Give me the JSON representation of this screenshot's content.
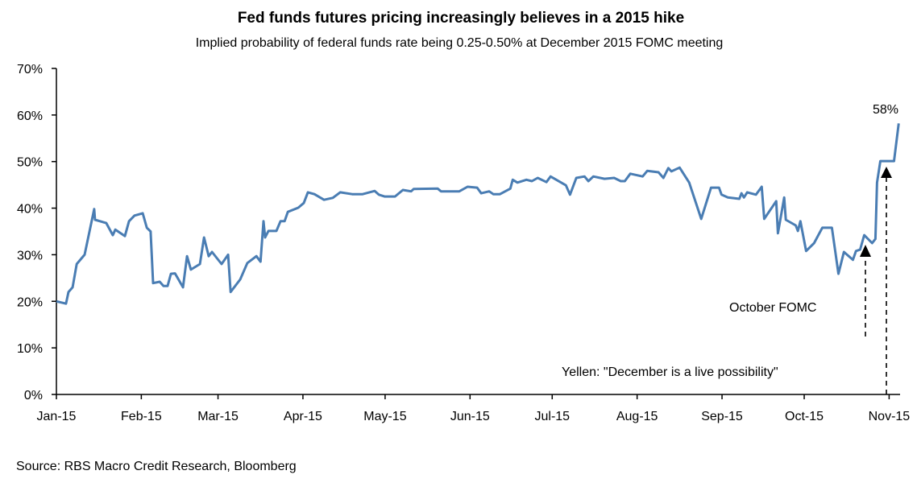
{
  "chart_data": {
    "type": "line",
    "title": "Fed funds futures pricing increasingly believes in a 2015 hike",
    "subtitle": "Implied  probability of federal funds rate being 0.25-0.50% at December 2015 FOMC  meeting",
    "source": "Source: RBS Macro Credit Research, Bloomberg",
    "xlabel": "",
    "ylabel": "",
    "x_unit": "day of year 2015 (0 = 1 Jan)",
    "xlim": [
      0,
      308
    ],
    "ylim": [
      0,
      70
    ],
    "y_ticks": [
      0,
      10,
      20,
      30,
      40,
      50,
      60,
      70
    ],
    "y_tick_labels": [
      "0%",
      "10%",
      "20%",
      "30%",
      "40%",
      "50%",
      "60%",
      "70%"
    ],
    "x_ticks": [
      0,
      31,
      59,
      90,
      120,
      151,
      181,
      212,
      243,
      273,
      304
    ],
    "x_tick_labels": [
      "Jan-15",
      "Feb-15",
      "Mar-15",
      "Apr-15",
      "May-15",
      "Jun-15",
      "Jul-15",
      "Aug-15",
      "Sep-15",
      "Oct-15",
      "Nov-15"
    ],
    "grid": false,
    "line_color": "#4a7db3",
    "series": [
      {
        "name": "Implied probability",
        "x": [
          0,
          3.5,
          4.4,
          5.9,
          7.4,
          10.3,
          13.8,
          14.1,
          18.2,
          20.6,
          21.5,
          25,
          26.5,
          28.5,
          31.5,
          33,
          34.4,
          35.3,
          37.7,
          39.1,
          40.6,
          41.8,
          43.3,
          46.2,
          47.7,
          49.1,
          52.4,
          53.9,
          55.6,
          56.8,
          60.3,
          62.7,
          63.6,
          67.1,
          69.7,
          73,
          74.5,
          75.6,
          76.2,
          77.4,
          80.3,
          81.8,
          83.3,
          84.5,
          88.3,
          90.3,
          91.8,
          94.2,
          97.7,
          100.9,
          103.6,
          108,
          111.8,
          116.2,
          117.7,
          119.8,
          123.6,
          126.5,
          129.5,
          130.4,
          139.2,
          140.4,
          147.1,
          150.1,
          153.6,
          155.1,
          158,
          159.5,
          161.9,
          165.7,
          166.6,
          168.3,
          171.6,
          173.6,
          175.7,
          178.9,
          180.4,
          186,
          187.5,
          189.8,
          192.8,
          194.2,
          196,
          200.1,
          203.6,
          206,
          207.5,
          209.5,
          214,
          215.7,
          219.8,
          221.6,
          223.4,
          224.5,
          227.5,
          231,
          235.4,
          239,
          241.9,
          242.8,
          245.1,
          249.3,
          250.1,
          251,
          252.2,
          255.4,
          257.5,
          258.4,
          262.8,
          263.4,
          265.7,
          266.3,
          269.9,
          270.7,
          271.6,
          273.7,
          276.6,
          279.6,
          283.1,
          285.5,
          287.5,
          290.8,
          291.9,
          293.4,
          294.9,
          297.8,
          299,
          299.6,
          300.8,
          305.8,
          307.5
        ],
        "y": [
          20,
          19.5,
          22,
          23,
          28,
          30,
          39.8,
          37.5,
          36.8,
          34.2,
          35.4,
          34,
          37.2,
          38.4,
          38.9,
          35.8,
          35,
          23.9,
          24.2,
          23.3,
          23.3,
          25.9,
          26,
          23,
          29.7,
          26.8,
          28,
          33.7,
          29.7,
          30.6,
          28,
          30,
          22,
          24.7,
          28.2,
          29.7,
          28.5,
          37.2,
          33.7,
          35.1,
          35.1,
          37.2,
          37.2,
          39.2,
          40.1,
          41.1,
          43.4,
          43,
          41.8,
          42.2,
          43.4,
          43,
          43,
          43.7,
          42.9,
          42.5,
          42.5,
          43.9,
          43.6,
          44.1,
          44.2,
          43.6,
          43.6,
          44.6,
          44.4,
          43.2,
          43.6,
          43,
          43,
          44.2,
          46.1,
          45.5,
          46.1,
          45.8,
          46.5,
          45.6,
          46.8,
          44.9,
          42.9,
          46.5,
          46.8,
          45.8,
          46.8,
          46.3,
          46.5,
          45.8,
          45.8,
          47.4,
          46.8,
          48,
          47.7,
          46.5,
          48.6,
          47.9,
          48.7,
          45.5,
          37.7,
          44.4,
          44.4,
          42.9,
          42.3,
          42,
          43.2,
          42.3,
          43.4,
          42.9,
          44.6,
          37.7,
          41.5,
          34.6,
          42.3,
          37.5,
          36.3,
          35.1,
          37.2,
          30.8,
          32.5,
          35.8,
          35.8,
          25.9,
          30.6,
          28.9,
          30.8,
          31.1,
          34.2,
          32.5,
          33.4,
          45.5,
          50.1,
          50.1,
          58.2
        ]
      }
    ],
    "annotations": {
      "end_label": "58%",
      "october_fomc": "October FOMC",
      "yellen": "Yellen: \"December is a live possibility\""
    }
  }
}
